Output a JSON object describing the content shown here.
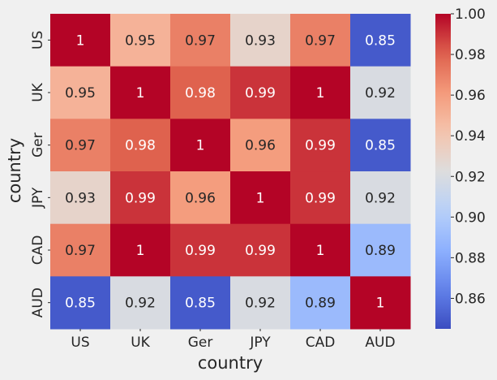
{
  "chart_data": {
    "type": "heatmap",
    "title": "",
    "xlabel": "country",
    "ylabel": "country",
    "x_categories": [
      "US",
      "UK",
      "Ger",
      "JPY",
      "CAD",
      "AUD"
    ],
    "y_categories": [
      "US",
      "UK",
      "Ger",
      "JPY",
      "CAD",
      "AUD"
    ],
    "values": [
      [
        1,
        0.95,
        0.97,
        0.93,
        0.97,
        0.85
      ],
      [
        0.95,
        1,
        0.98,
        0.99,
        1,
        0.92
      ],
      [
        0.97,
        0.98,
        1,
        0.96,
        0.99,
        0.85
      ],
      [
        0.93,
        0.99,
        0.96,
        1,
        0.99,
        0.92
      ],
      [
        0.97,
        1,
        0.99,
        0.99,
        1,
        0.89
      ],
      [
        0.85,
        0.92,
        0.85,
        0.92,
        0.89,
        1
      ]
    ],
    "labels": [
      [
        "1",
        "0.95",
        "0.97",
        "0.93",
        "0.97",
        "0.85"
      ],
      [
        "0.95",
        "1",
        "0.98",
        "0.99",
        "1",
        "0.92"
      ],
      [
        "0.97",
        "0.98",
        "1",
        "0.96",
        "0.99",
        "0.85"
      ],
      [
        "0.93",
        "0.99",
        "0.96",
        "1",
        "0.99",
        "0.92"
      ],
      [
        "0.97",
        "1",
        "0.99",
        "0.99",
        "1",
        "0.89"
      ],
      [
        "0.85",
        "0.92",
        "0.85",
        "0.92",
        "0.89",
        "1"
      ]
    ],
    "colormap": "coolwarm",
    "value_range": [
      0.845,
      1.0
    ],
    "colorbar_ticks": [
      1.0,
      0.98,
      0.96,
      0.94,
      0.92,
      0.9,
      0.88,
      0.86
    ],
    "colorbar_tick_labels": [
      "1.00",
      "0.98",
      "0.96",
      "0.94",
      "0.92",
      "0.90",
      "0.88",
      "0.86"
    ],
    "colors": {
      "background": "#f0f0f0",
      "label_dark": "#262626",
      "label_light": "#ffffff"
    }
  }
}
